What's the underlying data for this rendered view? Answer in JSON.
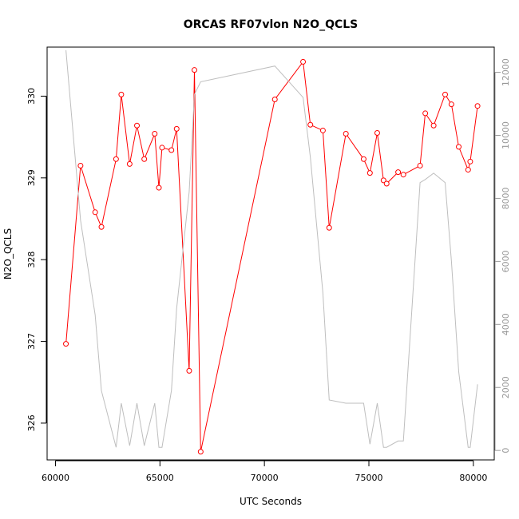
{
  "chart_data": {
    "type": "line",
    "title": "ORCAS RF07vlon N2O_QCLS",
    "xlabel": "UTC Seconds",
    "ylabel": "N2O_QCLS",
    "y2label": "",
    "xlim": [
      59600,
      81000
    ],
    "ylim": [
      325.55,
      330.6
    ],
    "y2lim": [
      -300,
      12800
    ],
    "xticks": [
      60000,
      65000,
      70000,
      75000,
      80000
    ],
    "yticks": [
      326,
      327,
      328,
      329,
      330
    ],
    "y2ticks": [
      0,
      2000,
      4000,
      6000,
      8000,
      10000,
      12000
    ],
    "series": [
      {
        "name": "",
        "axis": "left",
        "color": "#ff0000",
        "markers": true,
        "x": [
          60500,
          61200,
          61900,
          62200,
          62900,
          63150,
          63550,
          63900,
          64250,
          64750,
          64950,
          65100,
          65550,
          65800,
          66400,
          66650,
          66950,
          70500,
          71850,
          72200,
          72800,
          73100,
          73900,
          74750,
          75050,
          75400,
          75700,
          75850,
          76400,
          76650,
          77450,
          77700,
          78100,
          78650,
          78950,
          79300,
          79750,
          79850,
          80200
        ],
        "values": [
          326.97,
          329.15,
          328.58,
          328.4,
          329.23,
          330.02,
          329.17,
          329.64,
          329.23,
          329.54,
          328.88,
          329.37,
          329.34,
          329.6,
          326.64,
          330.32,
          325.65,
          329.96,
          330.42,
          329.65,
          329.58,
          328.39,
          329.54,
          329.23,
          329.06,
          329.55,
          328.97,
          328.93,
          329.07,
          329.04,
          329.15,
          329.79,
          329.64,
          330.02,
          329.9,
          329.38,
          329.1,
          329.2,
          329.88
        ]
      },
      {
        "name": "",
        "axis": "right",
        "color": "#bebebe",
        "markers": false,
        "x": [
          60500,
          61200,
          61900,
          62200,
          62900,
          63150,
          63550,
          63900,
          64250,
          64750,
          64950,
          65100,
          65550,
          65800,
          66400,
          66650,
          66950,
          70500,
          71850,
          72200,
          72800,
          73100,
          73900,
          74750,
          75050,
          75400,
          75700,
          75850,
          76400,
          76650,
          77450,
          77700,
          78100,
          78650,
          78950,
          79300,
          79750,
          79850,
          80200
        ],
        "values": [
          12700,
          7300,
          4300,
          1900,
          100,
          1500,
          150,
          1500,
          150,
          1500,
          100,
          100,
          1900,
          4500,
          8200,
          11300,
          11700,
          12200,
          11200,
          9300,
          5000,
          1600,
          1500,
          1500,
          200,
          1500,
          100,
          100,
          300,
          300,
          8500,
          8600,
          8800,
          8500,
          6000,
          2500,
          100,
          100,
          2100
        ]
      }
    ]
  }
}
